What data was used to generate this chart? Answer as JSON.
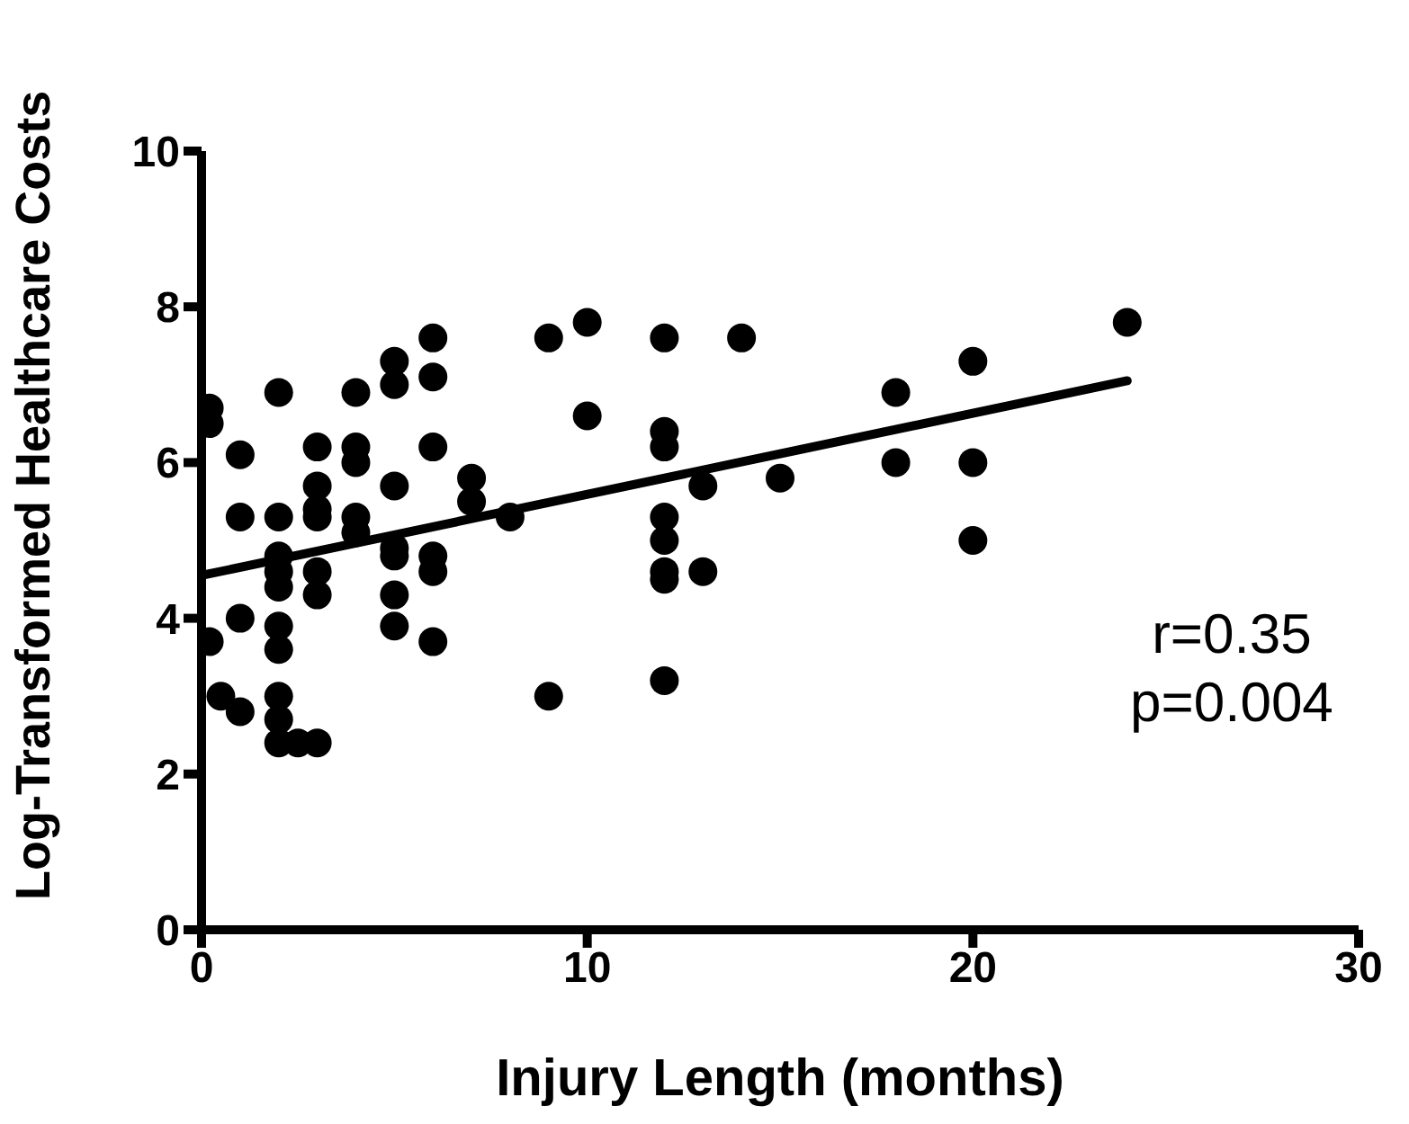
{
  "chart_data": {
    "type": "scatter",
    "xlabel": "Injury Length (months)",
    "ylabel": "Log-Transformed Healthcare Costs",
    "xlim": [
      0,
      30
    ],
    "xticks": [
      0,
      10,
      20,
      30
    ],
    "ylim": [
      0,
      10
    ],
    "yticks": [
      0,
      2,
      4,
      6,
      8,
      10
    ],
    "grid": false,
    "legend": false,
    "marker": "circle",
    "annotations": [
      "r=0.35",
      "p=0.004"
    ],
    "series": [
      {
        "color": "#000000",
        "x": [
          0.2,
          0.2,
          0.2,
          0.5,
          1,
          1,
          1,
          1,
          2,
          2,
          2,
          2,
          2,
          2,
          2,
          2,
          2,
          2,
          2.5,
          3,
          3,
          3,
          3,
          3,
          3,
          3,
          4,
          4,
          4,
          4,
          4,
          5,
          5,
          5,
          5,
          5,
          5,
          5,
          6,
          6,
          6,
          6,
          6,
          6,
          7,
          7,
          8,
          9,
          9,
          10,
          10,
          12,
          12,
          12,
          12,
          12,
          12,
          12,
          12,
          13,
          13,
          14,
          15,
          18,
          18,
          20,
          20,
          20,
          24
        ],
        "values": [
          6.7,
          6.5,
          3.7,
          3.0,
          6.1,
          5.3,
          4.0,
          2.8,
          6.9,
          5.3,
          4.8,
          4.6,
          4.4,
          3.9,
          3.6,
          3.0,
          2.7,
          2.4,
          2.4,
          2.4,
          6.2,
          5.7,
          5.4,
          5.3,
          4.6,
          4.3,
          6.9,
          6.2,
          6.0,
          5.3,
          5.1,
          7.3,
          7.0,
          5.7,
          4.9,
          4.8,
          4.3,
          3.9,
          7.6,
          7.1,
          6.2,
          4.8,
          4.6,
          3.7,
          5.8,
          5.5,
          5.3,
          7.6,
          3.0,
          7.8,
          6.6,
          7.6,
          6.4,
          6.2,
          5.3,
          5.0,
          4.6,
          4.5,
          3.2,
          5.7,
          4.6,
          7.6,
          5.8,
          6.9,
          6.0,
          7.3,
          6.0,
          5.0,
          7.8
        ]
      },
      {
        "type": "line",
        "color": "#000000",
        "marker": "none",
        "x": [
          0,
          24
        ],
        "values": [
          4.55,
          7.05
        ]
      }
    ]
  }
}
